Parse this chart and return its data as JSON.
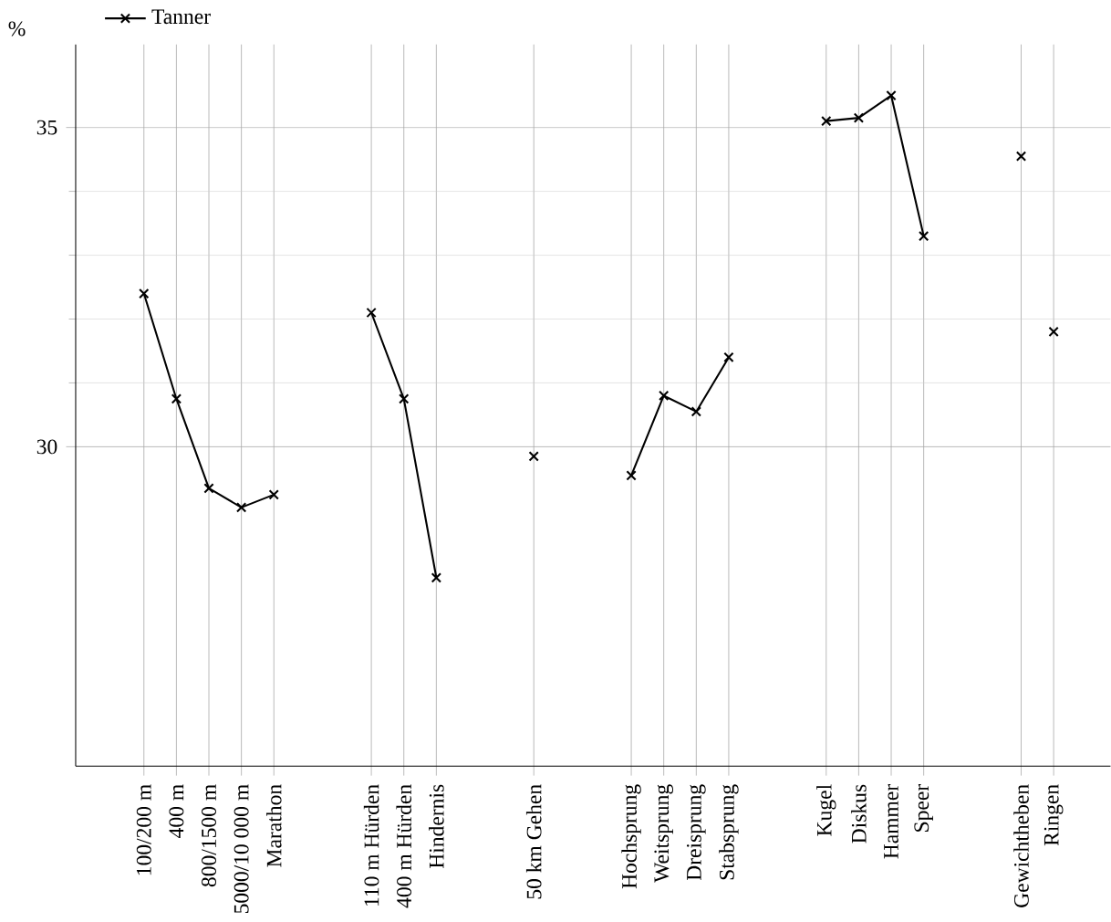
{
  "chart_data": {
    "type": "line",
    "ylabel": "%",
    "categories": [
      "100/200 m",
      "400 m",
      "800/1500 m",
      "5000/10 000 m",
      "Marathon",
      null,
      null,
      "110 m Hürden",
      "400 m Hürden",
      "Hindernis",
      null,
      null,
      "50 km Gehen",
      null,
      null,
      "Hochsprung",
      "Weitsprung",
      "Dreisprung",
      "Stabsprung",
      null,
      null,
      "Kugel",
      "Diskus",
      "Hammer",
      "Speer",
      null,
      null,
      "Gewichtheben",
      "Ringen"
    ],
    "series": [
      {
        "name": "Tanner",
        "color": "#000000",
        "values": [
          32.4,
          30.75,
          29.35,
          29.05,
          29.25,
          null,
          null,
          32.1,
          30.75,
          27.95,
          null,
          null,
          29.85,
          null,
          null,
          29.55,
          30.8,
          30.55,
          31.4,
          null,
          null,
          35.1,
          35.15,
          35.5,
          33.3,
          null,
          null,
          null,
          null
        ]
      },
      {
        "type": "scatter",
        "color": "#000000",
        "values": [
          null,
          null,
          null,
          null,
          null,
          null,
          null,
          null,
          null,
          null,
          null,
          null,
          null,
          null,
          null,
          null,
          null,
          null,
          null,
          null,
          null,
          null,
          null,
          null,
          null,
          null,
          null,
          34.55,
          31.8
        ]
      }
    ],
    "ylim": [
      25,
      36.3
    ],
    "yticks": [
      30,
      35
    ],
    "grid": true,
    "legend": "top left",
    "marker": "cross",
    "line_style": "solid"
  }
}
